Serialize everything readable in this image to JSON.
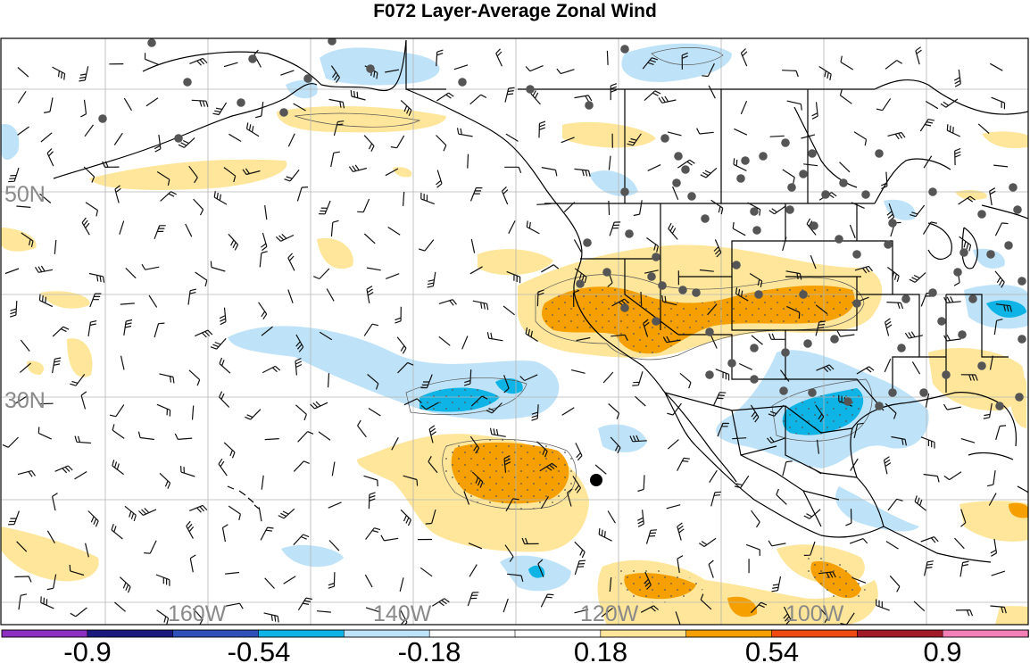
{
  "title": "F072 Layer-Average Zonal Wind",
  "latitude_labels": [
    "50N",
    "30N"
  ],
  "longitude_labels": [
    "160W",
    "140W",
    "120W",
    "100W"
  ],
  "colorbar": {
    "colors": [
      "#8a2fc0",
      "#1a1a7e",
      "#2e50b8",
      "#0fb4e6",
      "#bee3f8",
      "#ffffff",
      "#ffffff",
      "#ffe69a",
      "#f5a000",
      "#ee4a12",
      "#a11a28",
      "#f27fb6"
    ],
    "labels": [
      "-0.9",
      "-0.54",
      "-0.18",
      "0.18",
      "0.54",
      "0.9"
    ]
  },
  "shading_colors": {
    "weak_negative": "#bee3f8",
    "moderate_negative": "#0fb4e6",
    "weak_positive": "#ffe69a",
    "moderate_positive": "#f5a000"
  }
}
